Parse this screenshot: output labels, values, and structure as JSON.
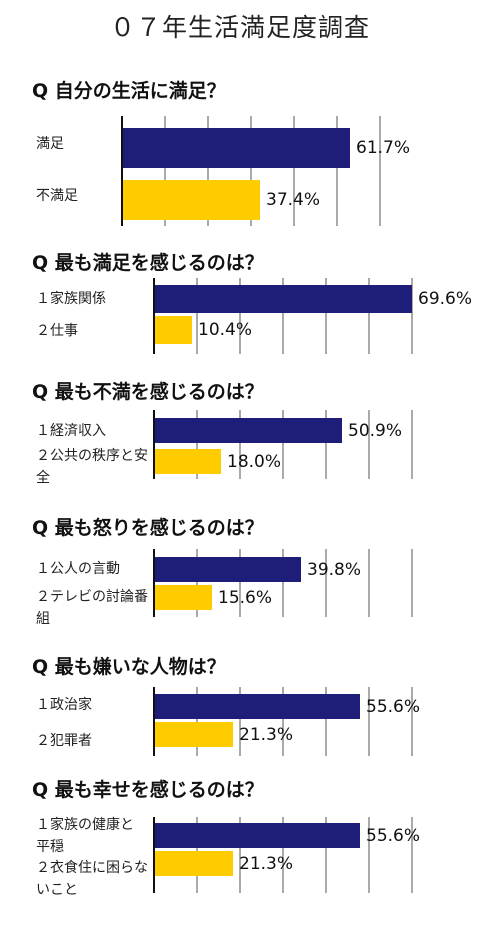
{
  "title": "０７年生活満足度調査",
  "colors": {
    "primary": "#1e1e78",
    "secondary": "#ffcc00",
    "grid": "#aaaaaa",
    "axis": "#111111"
  },
  "chart_data": [
    {
      "type": "bar",
      "orientation": "horizontal",
      "title": "Q 自分の生活に満足？",
      "categories": [
        "満足",
        "不満足"
      ],
      "values": [
        61.7,
        37.4
      ],
      "value_labels": [
        "61.7%",
        "37.4%"
      ],
      "xlim": [
        0,
        100
      ],
      "grid": true
    },
    {
      "type": "bar",
      "orientation": "horizontal",
      "title": "Q 最も満足を感じるのは？",
      "categories": [
        "１家族関係",
        "２仕事"
      ],
      "values": [
        69.6,
        10.4
      ],
      "value_labels": [
        "69.6%",
        "10.4%"
      ],
      "xlim": [
        0,
        100
      ],
      "grid": true
    },
    {
      "type": "bar",
      "orientation": "horizontal",
      "title": "Q 最も不満を感じるのは？",
      "categories": [
        "１経済収入",
        "２公共の秩序と安全"
      ],
      "values": [
        50.9,
        18.0
      ],
      "value_labels": [
        "50.9%",
        "18.0%"
      ],
      "xlim": [
        0,
        100
      ],
      "grid": true
    },
    {
      "type": "bar",
      "orientation": "horizontal",
      "title": "Q 最も怒りを感じるのは？",
      "categories": [
        "１公人の言動",
        "２テレビの討論番組"
      ],
      "values": [
        39.8,
        15.6
      ],
      "value_labels": [
        "39.8%",
        "15.6%"
      ],
      "xlim": [
        0,
        100
      ],
      "grid": true
    },
    {
      "type": "bar",
      "orientation": "horizontal",
      "title": "Q 最も嫌いな人物は？",
      "categories": [
        "１政治家",
        "２犯罪者"
      ],
      "values": [
        55.6,
        21.3
      ],
      "value_labels": [
        "55.6%",
        "21.3%"
      ],
      "xlim": [
        0,
        100
      ],
      "grid": true
    },
    {
      "type": "bar",
      "orientation": "horizontal",
      "title": "Q 最も幸せを感じるのは？",
      "categories": [
        "１家族の健康と平穏",
        "２衣食住に困らないこと"
      ],
      "values": [
        55.6,
        21.3
      ],
      "value_labels": [
        "55.6%",
        "21.3%"
      ],
      "xlim": [
        0,
        100
      ],
      "grid": true
    }
  ]
}
